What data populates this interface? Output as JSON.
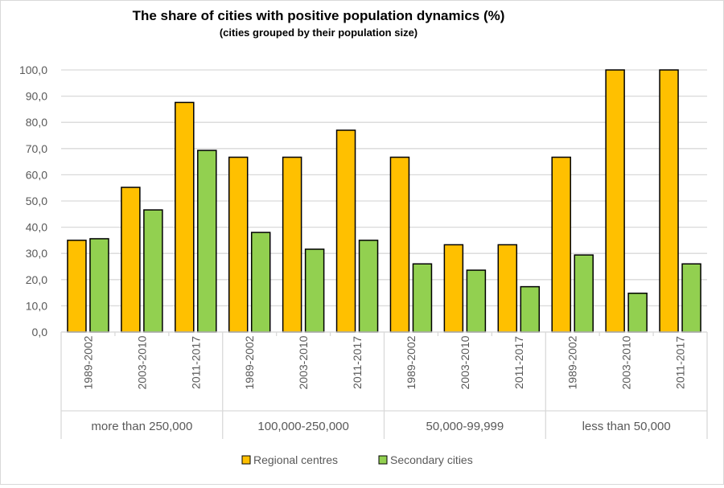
{
  "chart_data": {
    "type": "bar",
    "title": "The share of cities with positive population dynamics (%)",
    "subtitle": "(cities grouped by their population size)",
    "xlabel": "",
    "ylabel": "",
    "ylim": [
      0,
      100
    ],
    "yticks": [
      "0,0",
      "10,0",
      "20,0",
      "30,0",
      "40,0",
      "50,0",
      "60,0",
      "70,0",
      "80,0",
      "90,0",
      "100,0"
    ],
    "groups": [
      "more than 250,000",
      "100,000-250,000",
      "50,000-99,999",
      "less than 50,000"
    ],
    "categories": [
      "1989-2002",
      "2003-2010",
      "2011-2017",
      "1989-2002",
      "2003-2010",
      "2011-2017",
      "1989-2002",
      "2003-2010",
      "2011-2017",
      "1989-2002",
      "2003-2010",
      "2011-2017"
    ],
    "series": [
      {
        "name": "Regional centres",
        "color": "#FFC000",
        "values": [
          35.0,
          55.2,
          87.6,
          66.7,
          66.7,
          77.0,
          66.7,
          33.3,
          33.3,
          66.7,
          100.0,
          100.0
        ]
      },
      {
        "name": "Secondary cities",
        "color": "#92D050",
        "values": [
          35.6,
          46.6,
          69.3,
          38.0,
          31.6,
          35.0,
          26.0,
          23.6,
          17.3,
          29.4,
          14.8,
          26.0
        ]
      }
    ],
    "grid": true,
    "legend": "bottom"
  }
}
